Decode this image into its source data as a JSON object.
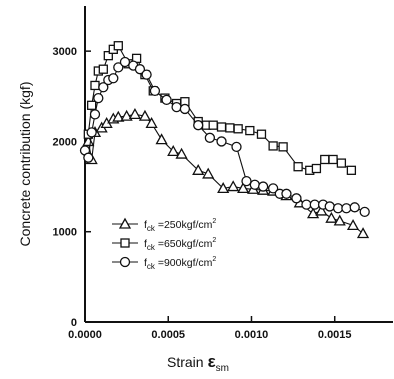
{
  "chart_data": {
    "type": "line",
    "xlabel": "Strain",
    "xlabel_symbol": "ε",
    "xlabel_sub": "sm",
    "ylabel": "Concrete contribution (kgf)",
    "xlim": [
      0,
      0.00185
    ],
    "ylim": [
      0,
      3500
    ],
    "xticks": [
      0.0,
      0.0005,
      0.001,
      0.0015
    ],
    "xtick_labels": [
      "0.0000",
      "0.0005",
      "0.0010",
      "0.0015"
    ],
    "yticks": [
      0,
      1000,
      2000,
      3000
    ],
    "ytick_labels": [
      "0",
      "1000",
      "2000",
      "3000"
    ],
    "grid": false,
    "legend_position": "lower-left",
    "series": [
      {
        "name": "f_ck =250kgf/cm²",
        "label_main": "f",
        "label_sub": "ck",
        "label_rest": " =250kgf/cm",
        "label_sup": "2",
        "marker": "triangle",
        "x": [
          2e-05,
          4e-05,
          6e-05,
          0.0001,
          0.00013,
          0.00017,
          0.0002,
          0.00025,
          0.0003,
          0.00036,
          0.0004,
          0.00046,
          0.00053,
          0.00058,
          0.00068,
          0.00074,
          0.00083,
          0.00089,
          0.00095,
          0.00101,
          0.00107,
          0.00113,
          0.00121,
          0.00129,
          0.00137,
          0.00142,
          0.00148,
          0.00153,
          0.00161,
          0.00167
        ],
        "y": [
          2000,
          1800,
          2100,
          2150,
          2200,
          2250,
          2270,
          2280,
          2300,
          2280,
          2200,
          2020,
          1890,
          1860,
          1680,
          1640,
          1480,
          1500,
          1480,
          1470,
          1460,
          1450,
          1400,
          1320,
          1200,
          1230,
          1150,
          1120,
          1070,
          980
        ]
      },
      {
        "name": "f_ck =650kgf/cm²",
        "label_main": "f",
        "label_sub": "ck",
        "label_rest": " =650kgf/cm",
        "label_sup": "2",
        "marker": "square",
        "x": [
          2e-05,
          4e-05,
          6e-05,
          8e-05,
          0.00011,
          0.00014,
          0.00017,
          0.0002,
          0.00026,
          0.00031,
          0.00036,
          0.00041,
          0.00048,
          0.00055,
          0.0006,
          0.00068,
          0.00073,
          0.00077,
          0.00082,
          0.00087,
          0.00092,
          0.00099,
          0.00106,
          0.00113,
          0.00119,
          0.00128,
          0.00135,
          0.00139,
          0.00144,
          0.00149,
          0.00154,
          0.0016
        ],
        "y": [
          2080,
          2400,
          2620,
          2780,
          2800,
          2950,
          3020,
          3060,
          2860,
          2920,
          2740,
          2560,
          2480,
          2420,
          2440,
          2220,
          2180,
          2180,
          2160,
          2150,
          2140,
          2120,
          2080,
          1950,
          1940,
          1720,
          1680,
          1700,
          1800,
          1800,
          1760,
          1680
        ]
      },
      {
        "name": "f_ck =900kgf/cm²",
        "label_main": "f",
        "label_sub": "ck",
        "label_rest": " =900kgf/cm",
        "label_sup": "2",
        "marker": "circle",
        "x": [
          0.0,
          2e-05,
          4e-05,
          6e-05,
          8e-05,
          0.00011,
          0.00014,
          0.00017,
          0.0002,
          0.00024,
          0.00029,
          0.00033,
          0.00037,
          0.00042,
          0.00049,
          0.00055,
          0.0006,
          0.00068,
          0.00075,
          0.00082,
          0.00091,
          0.00097,
          0.00102,
          0.00107,
          0.00113,
          0.00117,
          0.00121,
          0.00127,
          0.00133,
          0.00138,
          0.00143,
          0.00147,
          0.00152,
          0.00157,
          0.00162,
          0.00168
        ],
        "y": [
          1900,
          1820,
          2100,
          2300,
          2480,
          2600,
          2680,
          2700,
          2820,
          2880,
          2840,
          2800,
          2740,
          2560,
          2460,
          2380,
          2360,
          2180,
          2040,
          2000,
          1940,
          1560,
          1520,
          1500,
          1480,
          1420,
          1420,
          1370,
          1300,
          1300,
          1300,
          1280,
          1260,
          1260,
          1270,
          1220
        ]
      }
    ]
  }
}
